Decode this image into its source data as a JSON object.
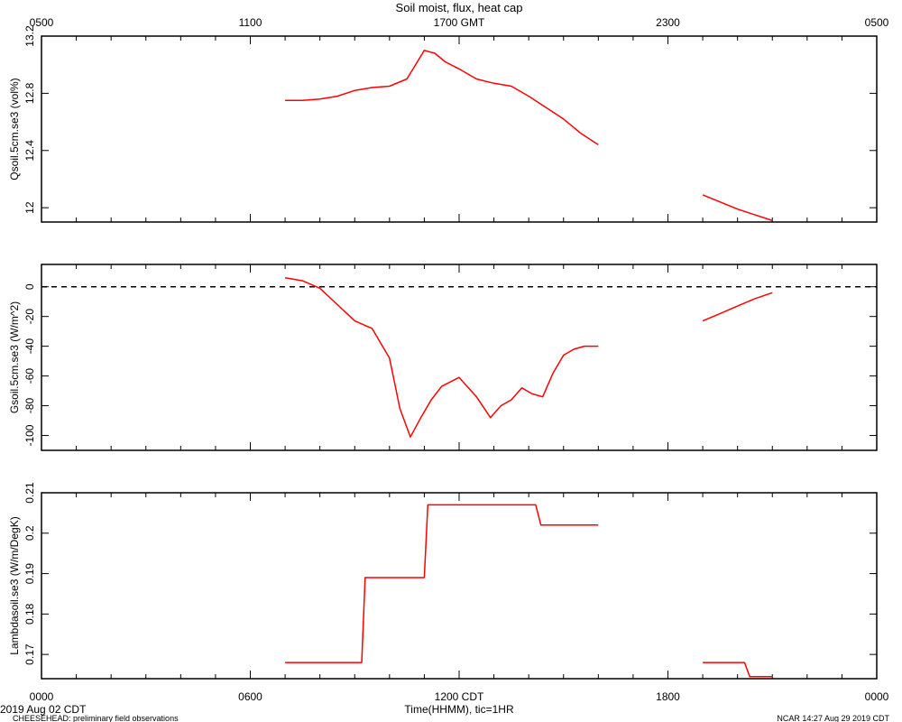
{
  "figure": {
    "title": "Soil moist, flux, heat cap",
    "top_axis_label": "GMT",
    "bottom_axis_label": "Time(HHMM), tic=1HR",
    "bottom_axis_tz": "CDT",
    "date_label": "2019 Aug 02 CDT",
    "footer_left": "CHEESEHEAD: preliminary field observations",
    "footer_right": "NCAR 14:27 Aug 29 2019 CDT"
  },
  "chart_data": [
    {
      "type": "line",
      "ylabel": "Qsoil.5cm.se3 (vol%)",
      "ylim": [
        11.9,
        13.2
      ],
      "yticks": [
        12.0,
        12.4,
        12.8,
        13.2
      ],
      "color": "#ff0000",
      "segments": [
        {
          "x": [
            7.0,
            7.5,
            8.0,
            8.5,
            9.0,
            9.5,
            10.0,
            10.5,
            10.8,
            11.0,
            11.3,
            11.6,
            12.0,
            12.5,
            13.0,
            13.5,
            14.0,
            14.5,
            15.0,
            15.5,
            16.0
          ],
          "y": [
            12.75,
            12.75,
            12.76,
            12.78,
            12.82,
            12.84,
            12.85,
            12.9,
            13.02,
            13.1,
            13.08,
            13.02,
            12.97,
            12.9,
            12.87,
            12.85,
            12.78,
            12.7,
            12.62,
            12.52,
            12.44
          ]
        },
        {
          "x": [
            19.0,
            19.5,
            20.0,
            20.5,
            21.0
          ],
          "y": [
            12.09,
            12.04,
            11.99,
            11.95,
            11.91
          ]
        }
      ]
    },
    {
      "type": "line",
      "ylabel": "Gsoil.5cm.se3 (W/m^2)",
      "ylim": [
        -110,
        15
      ],
      "yticks": [
        0,
        -20,
        -40,
        -60,
        -80,
        -100
      ],
      "zero_line": true,
      "color": "#ff0000",
      "segments": [
        {
          "x": [
            7.0,
            7.5,
            8.0,
            8.5,
            9.0,
            9.5,
            10.0,
            10.3,
            10.6,
            10.9,
            11.2,
            11.5,
            12.0,
            12.5,
            12.9,
            13.2,
            13.5,
            13.8,
            14.1,
            14.4,
            14.7,
            15.0,
            15.3,
            15.6,
            16.0
          ],
          "y": [
            6,
            4,
            -1,
            -12,
            -23,
            -28,
            -48,
            -82,
            -101,
            -88,
            -76,
            -67,
            -61,
            -74,
            -88,
            -80,
            -76,
            -68,
            -72,
            -74,
            -58,
            -46,
            -42,
            -40,
            -40
          ]
        },
        {
          "x": [
            19.0,
            19.5,
            20.0,
            20.5,
            21.0
          ],
          "y": [
            -23,
            -18,
            -13,
            -8,
            -4
          ]
        }
      ]
    },
    {
      "type": "line",
      "ylabel": "Lambdasoil.se3 (W/m/DegK)",
      "ylim": [
        0.164,
        0.21
      ],
      "yticks": [
        0.17,
        0.18,
        0.19,
        0.2,
        0.21
      ],
      "color": "#ff0000",
      "segments": [
        {
          "x": [
            7.0,
            9.2,
            9.3,
            11.0,
            11.1,
            14.2,
            14.35,
            16.0
          ],
          "y": [
            0.168,
            0.168,
            0.189,
            0.189,
            0.207,
            0.207,
            0.202,
            0.202
          ]
        },
        {
          "x": [
            19.0,
            20.2,
            20.35,
            21.0
          ],
          "y": [
            0.168,
            0.168,
            0.1645,
            0.1645
          ]
        }
      ]
    }
  ],
  "x_axis": {
    "xlim": [
      0,
      24
    ],
    "top_tick_labels": [
      "0500",
      "1100",
      "1700",
      "2300",
      "0500"
    ],
    "bottom_tick_labels": [
      "0000",
      "0600",
      "1200",
      "1800",
      "0000"
    ],
    "labeled_tick_hours": [
      0,
      6,
      12,
      18,
      24
    ]
  }
}
